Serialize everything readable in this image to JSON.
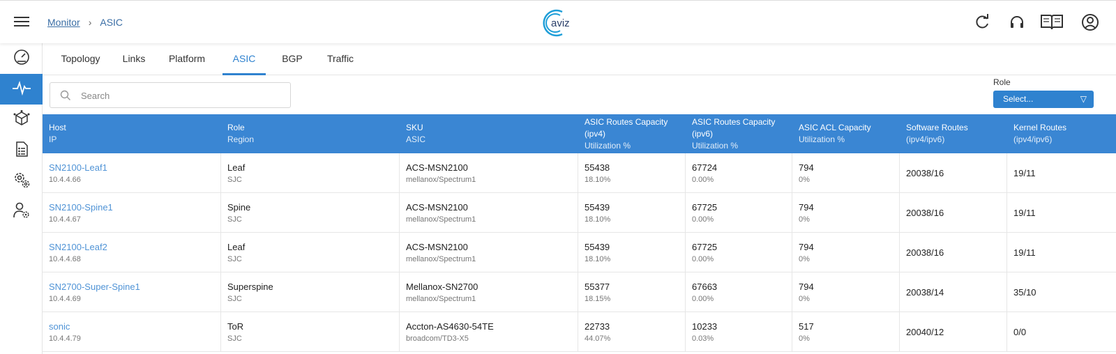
{
  "breadcrumb": {
    "parent": "Monitor",
    "separator": "›",
    "current": "ASIC"
  },
  "header_icons": [
    "refresh-icon",
    "headset-icon",
    "docs-book-icon",
    "account-icon"
  ],
  "sidebar": {
    "items": [
      "dashboard-gauge-icon",
      "pulse-icon",
      "network-cube-icon",
      "config-doc-icon",
      "gears-icon",
      "user-settings-icon"
    ],
    "active_index": 1
  },
  "tabs": [
    "Topology",
    "Links",
    "Platform",
    "ASIC",
    "BGP",
    "Traffic"
  ],
  "active_tab": "ASIC",
  "search": {
    "placeholder": "Search",
    "value": ""
  },
  "role_filter": {
    "label": "Role",
    "value": "Select..."
  },
  "columns": [
    {
      "l1": "Host",
      "l2": "IP"
    },
    {
      "l1": "Role",
      "l2": "Region"
    },
    {
      "l1": "SKU",
      "l2": "ASIC"
    },
    {
      "l1": "ASIC Routes Capacity",
      "l1b": "(ipv4)",
      "l2": "Utilization %"
    },
    {
      "l1": "ASIC Routes Capacity",
      "l1b": "(ipv6)",
      "l2": "Utilization %"
    },
    {
      "l1": "ASIC ACL Capacity",
      "l2": "Utilization %"
    },
    {
      "l1": "Software Routes",
      "l2": "(ipv4/ipv6)"
    },
    {
      "l1": "Kernel Routes",
      "l2": "(ipv4/ipv6)"
    }
  ],
  "rows": [
    {
      "host": "SN2100-Leaf1",
      "ip": "10.4.4.66",
      "role": "Leaf",
      "region": "SJC",
      "sku": "ACS-MSN2100",
      "asic": "mellanox/Spectrum1",
      "v4cap": "55438",
      "v4util": "18.10%",
      "v6cap": "67724",
      "v6util": "0.00%",
      "acl": "794",
      "aclutil": "0%",
      "sw": "20038/16",
      "kernel": "19/11"
    },
    {
      "host": "SN2100-Spine1",
      "ip": "10.4.4.67",
      "role": "Spine",
      "region": "SJC",
      "sku": "ACS-MSN2100",
      "asic": "mellanox/Spectrum1",
      "v4cap": "55439",
      "v4util": "18.10%",
      "v6cap": "67725",
      "v6util": "0.00%",
      "acl": "794",
      "aclutil": "0%",
      "sw": "20038/16",
      "kernel": "19/11"
    },
    {
      "host": "SN2100-Leaf2",
      "ip": "10.4.4.68",
      "role": "Leaf",
      "region": "SJC",
      "sku": "ACS-MSN2100",
      "asic": "mellanox/Spectrum1",
      "v4cap": "55439",
      "v4util": "18.10%",
      "v6cap": "67725",
      "v6util": "0.00%",
      "acl": "794",
      "aclutil": "0%",
      "sw": "20038/16",
      "kernel": "19/11"
    },
    {
      "host": "SN2700-Super-Spine1",
      "ip": "10.4.4.69",
      "role": "Superspine",
      "region": "SJC",
      "sku": "Mellanox-SN2700",
      "asic": "mellanox/Spectrum1",
      "v4cap": "55377",
      "v4util": "18.15%",
      "v6cap": "67663",
      "v6util": "0.00%",
      "acl": "794",
      "aclutil": "0%",
      "sw": "20038/14",
      "kernel": "35/10"
    },
    {
      "host": "sonic",
      "ip": "10.4.4.79",
      "role": "ToR",
      "region": "SJC",
      "sku": "Accton-AS4630-54TE",
      "asic": "broadcom/TD3-X5",
      "v4cap": "22733",
      "v4util": "44.07%",
      "v6cap": "10233",
      "v6util": "0.03%",
      "acl": "517",
      "aclutil": "0%",
      "sw": "20040/12",
      "kernel": "0/0"
    }
  ],
  "colors": {
    "accent": "#2f82cf",
    "header_row": "#3a86d3",
    "link": "#4f93d6"
  }
}
